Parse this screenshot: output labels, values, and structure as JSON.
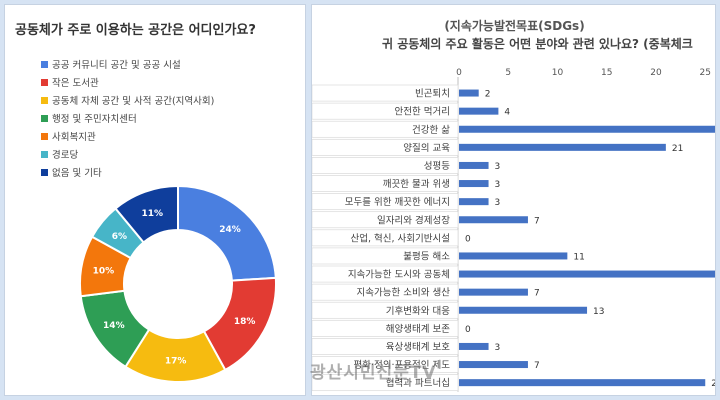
{
  "left": {
    "title": "공동체가 주로 이용하는 공간은 어디인가요?",
    "chart_data": {
      "type": "pie",
      "title": "공동체가 주로 이용하는 공간은 어디인가요?",
      "categories": [
        "공공 커뮤니티 공간 및 공공 시설",
        "작은 도서관",
        "공동체 자체 공간 및 사적 공간(지역사회)",
        "행정 및 주민자치센터",
        "사회복지관",
        "경로당",
        "없음 및 기타"
      ],
      "values": [
        24,
        18,
        17,
        14,
        10,
        6,
        11
      ],
      "labels": [
        "24%",
        "18%",
        "17%",
        "14%",
        "10%",
        "6%",
        "11%"
      ],
      "colors": [
        "#4a7fe0",
        "#e23b33",
        "#f6bb10",
        "#2e9e55",
        "#f3770c",
        "#47b5c8",
        "#0f3e9c"
      ],
      "legend_position": "top-left"
    }
  },
  "right": {
    "title_line1": "(지속가능발전목표(SDGs)",
    "title_line2": "귀 공동체의 주요 활동은 어떤 분야와 관련 있나요? (중복체크",
    "chart_data": {
      "type": "bar",
      "orientation": "horizontal",
      "title": "(지속가능발전목표(SDGs) 귀 공동체의 주요 활동은 어떤 분야와 관련 있나요? (중복체크",
      "categories": [
        "빈곤퇴치",
        "안전한 먹거리",
        "건강한 삶",
        "양질의 교육",
        "성평등",
        "깨끗한 물과 위생",
        "모두를 위한 깨끗한 에너지",
        "일자리와 경제성장",
        "산업, 혁신, 사회기반시설",
        "불평등 해소",
        "지속가능한 도시와 공동체",
        "지속가능한 소비와 생산",
        "기후변화와 대응",
        "해양생태계 보존",
        "육상생태계 보호",
        "평화·정의·포용적인 제도",
        "협력과 파트너십"
      ],
      "values": [
        2,
        4,
        27,
        21,
        3,
        3,
        3,
        7,
        0,
        11,
        27,
        7,
        13,
        0,
        3,
        7,
        25
      ],
      "data_labels": [
        "2",
        "4",
        "",
        "21",
        "3",
        "3",
        "3",
        "7",
        "0",
        "11",
        "",
        "7",
        "13",
        "0",
        "3",
        "7",
        "25"
      ],
      "xticks": [
        0,
        5,
        10,
        15,
        20,
        25
      ],
      "xlim": [
        0,
        26
      ],
      "color": "#4472c4",
      "grid": false
    }
  },
  "watermark": "광산시민신문TV"
}
